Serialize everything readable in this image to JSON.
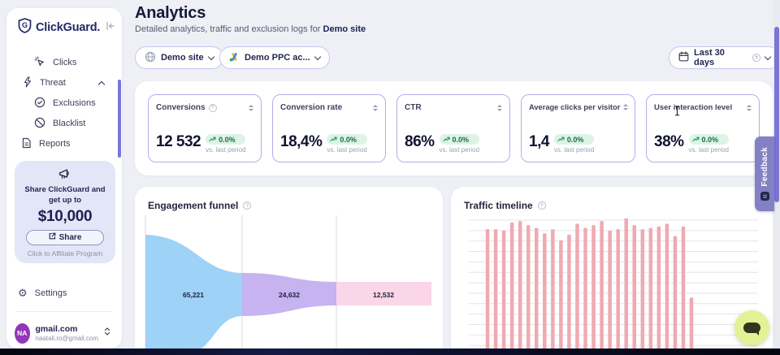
{
  "app": {
    "brand": "ClickGuard."
  },
  "sidebar": {
    "nav": [
      {
        "label": "Clicks"
      },
      {
        "label": "Threat"
      },
      {
        "label": "Exclusions"
      },
      {
        "label": "Blacklist"
      },
      {
        "label": "Reports"
      }
    ],
    "promo": {
      "line1": "Share ClickGuard and",
      "line2": "get up to",
      "amount": "$10,000",
      "share_button": "Share",
      "footer": "Click to Affiliate Program"
    },
    "settings_label": "Settings",
    "account": {
      "initials": "NA",
      "name": "gmail.com",
      "email": "naatali.ro@gmail.com"
    }
  },
  "header": {
    "title": "Analytics",
    "subtitle": "Detailed analytics, traffic and exclusion logs for",
    "subtitle_target": "Demo site",
    "site_selector": "Demo site",
    "ppc_selector": "Demo PPC ac...",
    "date_range": "Last 30 days"
  },
  "kpis": [
    {
      "label": "Conversions",
      "value": "12 532",
      "change": "0.0%",
      "period": "vs. last period"
    },
    {
      "label": "Conversion rate",
      "value": "18,4%",
      "change": "0.0%",
      "period": "vs. last period"
    },
    {
      "label": "CTR",
      "value": "86%",
      "change": "0.0%",
      "period": "vs. last period"
    },
    {
      "label": "Average clicks per visitor",
      "value": "1,4",
      "change": "0.0%",
      "period": "vs. last period"
    },
    {
      "label": "User interaction level",
      "value": "38%",
      "change": "0.0%",
      "period": "vs. last period"
    }
  ],
  "chart_data": [
    {
      "type": "area",
      "subtype": "funnel",
      "title": "Engagement funnel",
      "stages": [
        {
          "label": "65,221",
          "value": 65221,
          "color": "#9ed2f6"
        },
        {
          "label": "24,632",
          "value": 24632,
          "color": "#c6b3ef"
        },
        {
          "label": "12,532",
          "value": 12532,
          "color": "#fbd5e8"
        }
      ],
      "grid": "vertical stage separators",
      "note": "funnel narrows left to right; bottom cropped by viewport"
    },
    {
      "type": "bar",
      "title": "Traffic timeline",
      "bar_color": "#efaab1",
      "grid": "horizontal lines, no visible axis labels",
      "ylim_note": "bars cropped at bottom of viewport; values are relative heights 0-100",
      "values": [
        4,
        92,
        92,
        91,
        97,
        98,
        95,
        93,
        89,
        92,
        84,
        88,
        96,
        93,
        95,
        98,
        91,
        92,
        100,
        95,
        92,
        93,
        94,
        96,
        87,
        94,
        42
      ]
    }
  ],
  "feedback_tab": {
    "label": "Feedback"
  },
  "colors": {
    "accent_purple": "#7b74d9",
    "card_border": "#b6aeea",
    "badge_green_bg": "#ddf3e6",
    "badge_green_text": "#156f46",
    "funnel_blue": "#9ed2f6",
    "funnel_purple": "#c6b3ef",
    "funnel_pink": "#fbd5e8",
    "bar_pink": "#efaab1",
    "promo_bg": "#e3e6f7",
    "chat_fab": "#e2f295",
    "feedback_bg": "#8381c4"
  }
}
